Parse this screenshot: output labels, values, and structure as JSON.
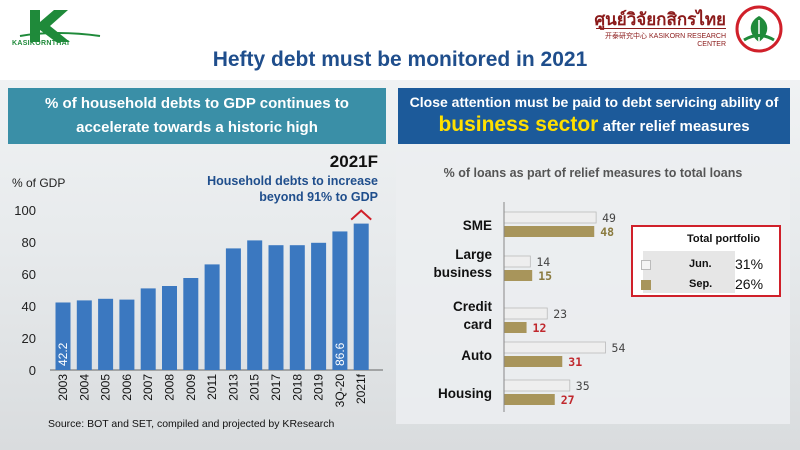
{
  "header": {
    "logo_left_text": "KASIKORNTHAI",
    "title": "Hefty debt must be monitored in 2021",
    "research_center_thai": "ศูนย์วิจัยกสิกรไทย",
    "research_center_eng": "开泰研究中心 KASIKORN RESEARCH CENTER"
  },
  "left_banner": {
    "line1": "% of household debts to GDP continues to",
    "line2": "accelerate towards a historic high"
  },
  "right_banner": {
    "line1": "Close attention must be paid to debt servicing ability of",
    "highlight": "business sector",
    "rest": "after relief measures"
  },
  "chart_data": [
    {
      "type": "bar",
      "title": "2021F",
      "annotation": [
        "Household debts to increase",
        "beyond 91% to GDP"
      ],
      "ylabel": "% of GDP",
      "xlabel": "",
      "ylim": [
        0,
        100
      ],
      "yticks": [
        0,
        20,
        40,
        60,
        80,
        100
      ],
      "categories": [
        "2003",
        "2004",
        "2005",
        "2006",
        "2007",
        "2008",
        "2009",
        "2011",
        "2013",
        "2015",
        "2017",
        "2018",
        "2019",
        "3Q-20",
        "2021f"
      ],
      "values": [
        42.2,
        43.5,
        44.5,
        44,
        51,
        52.5,
        57.5,
        66,
        76,
        81,
        78,
        78,
        79.5,
        86.6,
        91.5
      ],
      "data_labels": {
        "0": "42.2",
        "13": "86.6"
      },
      "color": "#3b78c0",
      "source": "Source: BOT and SET, compiled and projected by KResearch"
    },
    {
      "type": "bar",
      "orientation": "horizontal",
      "title": "% of loans as part of relief measures to total loans",
      "categories": [
        [
          "SME"
        ],
        [
          "Large",
          "business"
        ],
        [
          "Credit",
          "card"
        ],
        [
          "Auto"
        ],
        [
          "Housing"
        ]
      ],
      "series": [
        {
          "name": "Jun.",
          "values": [
            49,
            14,
            23,
            54,
            35
          ],
          "color": "#eeeeee"
        },
        {
          "name": "Sep.",
          "values": [
            48,
            15,
            12,
            31,
            27
          ],
          "color": "#a8955b"
        }
      ],
      "label_colors": {
        "Jun.": "#444444",
        "Sep.": "#c0282d"
      },
      "label_colors_sme_large": "#8a7a3e",
      "legend": {
        "title": "Total portfolio",
        "items": [
          {
            "label": "Jun.",
            "value": "31%"
          },
          {
            "label": "Sep.",
            "value": "26%"
          }
        ],
        "placement": "right"
      }
    }
  ]
}
